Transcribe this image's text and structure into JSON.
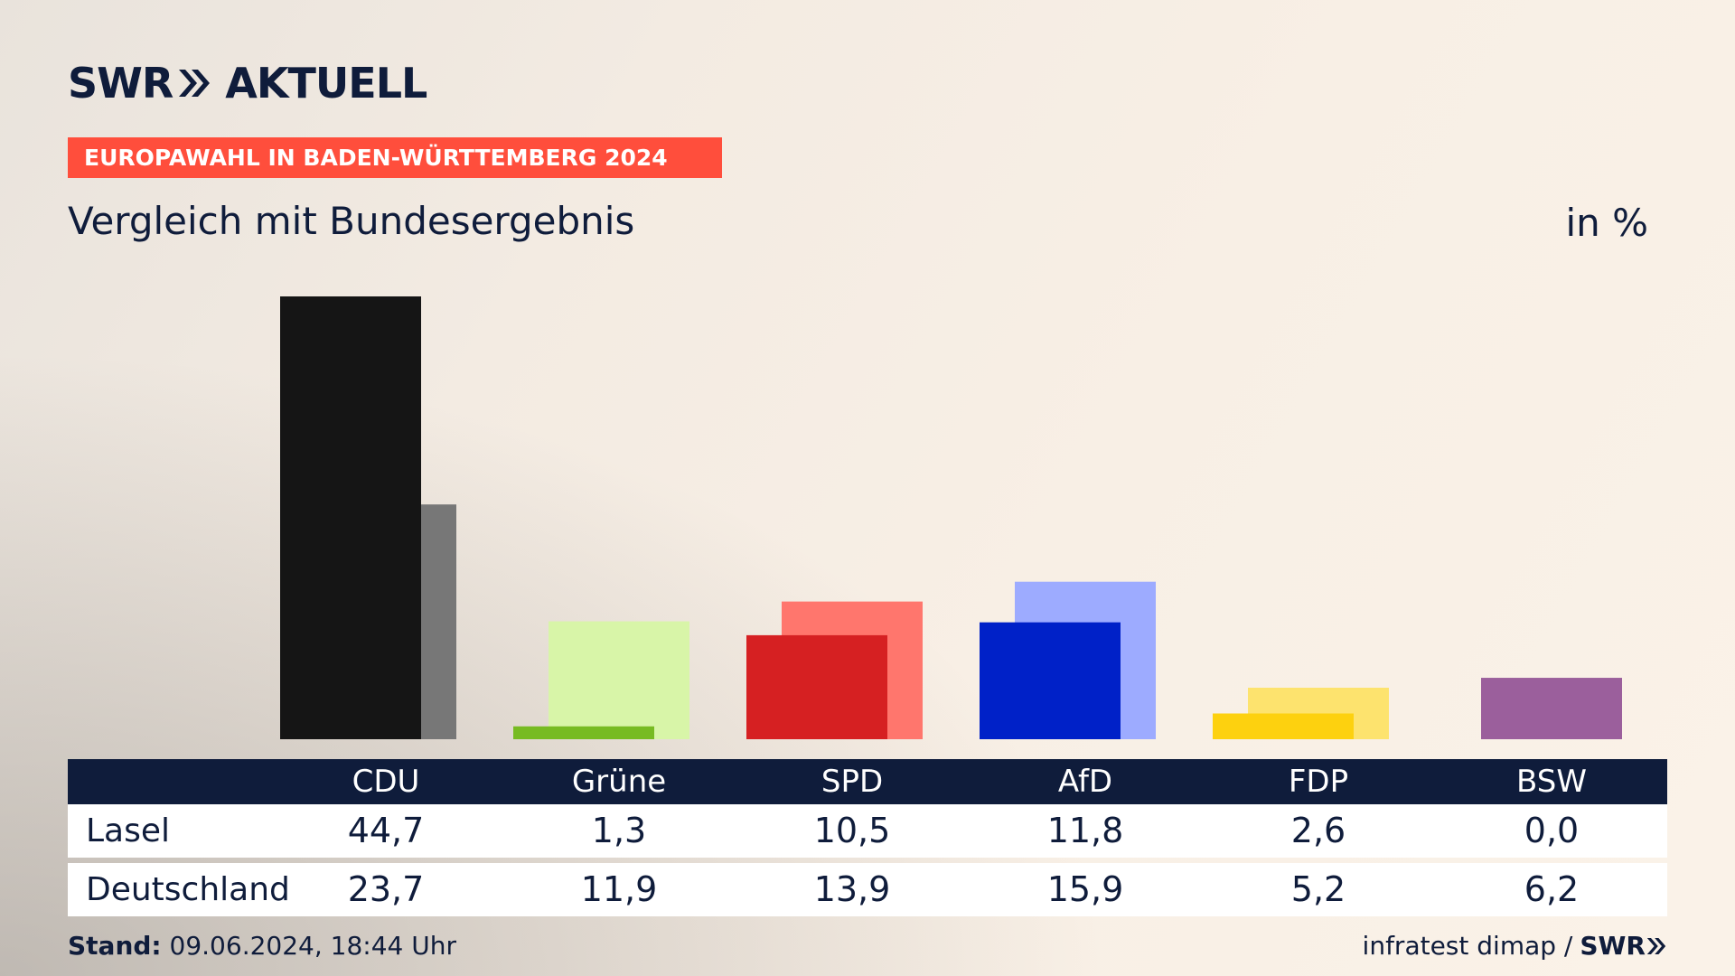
{
  "header": {
    "logo_left": "SWR",
    "logo_right": "AKTUELL",
    "ribbon": "EUROPAWAHL IN BADEN-WÜRTTEMBERG 2024",
    "subtitle": "Vergleich mit Bundesergebnis",
    "unit": "in %"
  },
  "chart_data": {
    "type": "bar",
    "categories": [
      "CDU",
      "Grüne",
      "SPD",
      "AfD",
      "FDP",
      "BSW"
    ],
    "series": [
      {
        "name": "Lasel",
        "values": [
          44.7,
          1.3,
          10.5,
          11.8,
          2.6,
          0.0
        ]
      },
      {
        "name": "Deutschland",
        "values": [
          23.7,
          11.9,
          13.9,
          15.9,
          5.2,
          6.2
        ]
      }
    ],
    "ylim": [
      0,
      44.7
    ],
    "colors": {
      "Lasel": [
        "#151515",
        "#77bb22",
        "#d62022",
        "#0021c8",
        "#fdd10f",
        "#9b5f9c"
      ],
      "Deutschland": [
        "#777777",
        "#d8f5a8",
        "#ff766d",
        "#9dabff",
        "#fde36e",
        "#9b5f9c"
      ]
    },
    "display_values": {
      "Lasel": [
        "44,7",
        "1,3",
        "10,5",
        "11,8",
        "2,6",
        "0,0"
      ],
      "Deutschland": [
        "23,7",
        "11,9",
        "13,9",
        "15,9",
        "5,2",
        "6,2"
      ]
    }
  },
  "table": {
    "rows": [
      {
        "label": "Lasel"
      },
      {
        "label": "Deutschland"
      }
    ]
  },
  "footer": {
    "stand_label": "Stand:",
    "stand_value": "09.06.2024, 18:44 Uhr",
    "source": "infratest dimap /",
    "source_logo": "SWR"
  }
}
